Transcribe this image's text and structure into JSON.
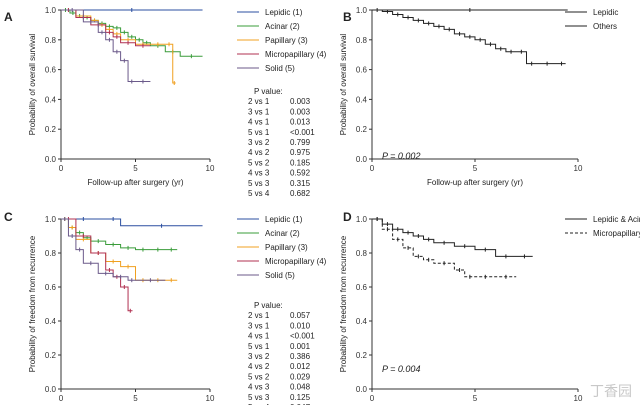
{
  "watermark": "丁香园",
  "chart_data": [
    {
      "panel": "A",
      "type": "line",
      "subtype": "kaplan-meier",
      "xlabel": "Follow-up after surgery (yr)",
      "ylabel": "Probability of overall survival",
      "xlim": [
        0,
        10
      ],
      "ylim": [
        0,
        1.0
      ],
      "xticks": [
        0,
        5,
        10
      ],
      "yticks": [
        0,
        0.2,
        0.4,
        0.6,
        0.8,
        1.0
      ],
      "legend_position": "top-right",
      "pvalue_title": "P value:",
      "pvalues": [
        {
          "comparison": "2 vs 1",
          "value": "0.003"
        },
        {
          "comparison": "3 vs 1",
          "value": "0.003"
        },
        {
          "comparison": "4 vs 1",
          "value": "0.013"
        },
        {
          "comparison": "5 vs 1",
          "value": "<0.001"
        },
        {
          "comparison": "3 vs 2",
          "value": "0.799"
        },
        {
          "comparison": "4 vs 2",
          "value": "0.975"
        },
        {
          "comparison": "5 vs 2",
          "value": "0.185"
        },
        {
          "comparison": "4 vs 3",
          "value": "0.592"
        },
        {
          "comparison": "5 vs 3",
          "value": "0.315"
        },
        {
          "comparison": "5 vs 4",
          "value": "0.682"
        }
      ],
      "series": [
        {
          "name": "Lepidic (1)",
          "color": "#2b4fa0",
          "dash": "",
          "x": [
            0,
            9.5
          ],
          "y": [
            1.0,
            1.0
          ]
        },
        {
          "name": "Acinar (2)",
          "color": "#3a9c3a",
          "dash": "",
          "x": [
            0,
            0.6,
            1.0,
            1.5,
            2.0,
            2.5,
            3.0,
            3.5,
            4.0,
            4.5,
            5.0,
            5.5,
            6.0,
            7.0,
            8.0,
            9.5
          ],
          "y": [
            1.0,
            0.98,
            0.96,
            0.95,
            0.93,
            0.91,
            0.89,
            0.88,
            0.85,
            0.82,
            0.8,
            0.78,
            0.76,
            0.72,
            0.69,
            0.69
          ]
        },
        {
          "name": "Papillary (3)",
          "color": "#f0a020",
          "dash": "",
          "x": [
            0,
            1.0,
            2.0,
            2.5,
            3.0,
            3.5,
            4.0,
            5.0,
            6.0,
            7.0,
            7.5,
            7.7
          ],
          "y": [
            1.0,
            0.96,
            0.93,
            0.9,
            0.87,
            0.84,
            0.8,
            0.77,
            0.77,
            0.77,
            0.51,
            0.51
          ]
        },
        {
          "name": "Micropapillary (4)",
          "color": "#b03050",
          "dash": "",
          "x": [
            0,
            1.0,
            2.0,
            3.0,
            3.5,
            4.0,
            5.0,
            6.0
          ],
          "y": [
            1.0,
            0.95,
            0.9,
            0.85,
            0.82,
            0.78,
            0.76,
            0.76
          ]
        },
        {
          "name": "Solid (5)",
          "color": "#6b5a8a",
          "dash": "",
          "x": [
            0,
            1.5,
            2.5,
            3.0,
            3.5,
            4.0,
            4.5,
            5.0,
            6.0
          ],
          "y": [
            1.0,
            0.92,
            0.85,
            0.8,
            0.72,
            0.66,
            0.52,
            0.52,
            0.52
          ]
        }
      ]
    },
    {
      "panel": "B",
      "type": "line",
      "subtype": "kaplan-meier",
      "xlabel": "Follow-up after surgery (yr)",
      "ylabel": "Probability of overall survival",
      "xlim": [
        0,
        10
      ],
      "ylim": [
        0,
        1.0
      ],
      "xticks": [
        0,
        5,
        10
      ],
      "yticks": [
        0,
        0.2,
        0.4,
        0.6,
        0.8,
        1.0
      ],
      "legend_position": "top-right",
      "annotation": "P = 0.002",
      "series": [
        {
          "name": "Lepidic",
          "color": "#222222",
          "dash": "",
          "x": [
            0,
            9.5
          ],
          "y": [
            1.0,
            1.0
          ]
        },
        {
          "name": "Others",
          "color": "#222222",
          "dash": "",
          "x": [
            0,
            0.5,
            1.0,
            1.5,
            2.0,
            2.5,
            3.0,
            3.5,
            4.0,
            4.5,
            5.0,
            5.5,
            6.0,
            6.5,
            7.0,
            7.5,
            8.0,
            9.0,
            9.4
          ],
          "y": [
            1.0,
            0.99,
            0.97,
            0.95,
            0.93,
            0.91,
            0.89,
            0.87,
            0.84,
            0.82,
            0.8,
            0.77,
            0.74,
            0.72,
            0.72,
            0.64,
            0.64,
            0.64,
            0.64
          ]
        }
      ]
    },
    {
      "panel": "C",
      "type": "line",
      "subtype": "kaplan-meier",
      "xlabel": "Follow-up after surgery (yr)",
      "ylabel": "Probability of freedom from recurrence",
      "xlim": [
        0,
        10
      ],
      "ylim": [
        0,
        1.0
      ],
      "xticks": [
        0,
        5,
        10
      ],
      "yticks": [
        0,
        0.2,
        0.4,
        0.6,
        0.8,
        1.0
      ],
      "legend_position": "top-right",
      "pvalue_title": "P value:",
      "pvalues": [
        {
          "comparison": "2 vs 1",
          "value": "0.057"
        },
        {
          "comparison": "3 vs 1",
          "value": "0.010"
        },
        {
          "comparison": "4 vs 1",
          "value": "<0.001"
        },
        {
          "comparison": "5 vs 1",
          "value": "0.001"
        },
        {
          "comparison": "3 vs 2",
          "value": "0.386"
        },
        {
          "comparison": "4 vs 2",
          "value": "0.012"
        },
        {
          "comparison": "5 vs 2",
          "value": "0.029"
        },
        {
          "comparison": "4 vs 3",
          "value": "0.048"
        },
        {
          "comparison": "5 vs 3",
          "value": "0.125"
        },
        {
          "comparison": "5 vs 4",
          "value": "0.047"
        }
      ],
      "series": [
        {
          "name": "Lepidic (1)",
          "color": "#2b4fa0",
          "dash": "",
          "x": [
            0,
            3.0,
            4.0,
            9.5
          ],
          "y": [
            1.0,
            1.0,
            0.96,
            0.96
          ]
        },
        {
          "name": "Acinar (2)",
          "color": "#3a9c3a",
          "dash": "",
          "x": [
            0,
            0.5,
            1.0,
            1.5,
            2.0,
            3.0,
            4.0,
            5.0,
            6.0,
            7.0,
            7.8
          ],
          "y": [
            1.0,
            0.95,
            0.92,
            0.89,
            0.87,
            0.85,
            0.83,
            0.82,
            0.82,
            0.82,
            0.82
          ]
        },
        {
          "name": "Papillary (3)",
          "color": "#f0a020",
          "dash": "",
          "x": [
            0,
            0.5,
            1.0,
            2.0,
            3.0,
            4.0,
            5.0,
            6.0,
            7.0,
            7.8
          ],
          "y": [
            1.0,
            0.95,
            0.88,
            0.8,
            0.75,
            0.72,
            0.64,
            0.64,
            0.64,
            0.64
          ]
        },
        {
          "name": "Micropapillary (4)",
          "color": "#b03050",
          "dash": "",
          "x": [
            0,
            1.0,
            2.0,
            3.0,
            3.5,
            4.0,
            4.5,
            4.8
          ],
          "y": [
            1.0,
            0.9,
            0.8,
            0.7,
            0.66,
            0.6,
            0.46,
            0.46
          ]
        },
        {
          "name": "Solid (5)",
          "color": "#6b5a8a",
          "dash": "",
          "x": [
            0,
            0.5,
            1.0,
            1.5,
            2.5,
            3.5,
            4.5,
            5.0,
            7.0
          ],
          "y": [
            1.0,
            0.9,
            0.82,
            0.74,
            0.68,
            0.66,
            0.64,
            0.64,
            0.64
          ]
        }
      ]
    },
    {
      "panel": "D",
      "type": "line",
      "subtype": "kaplan-meier",
      "xlabel": "Follow-up after surgery (yr)",
      "ylabel": "Probability of freedom from recurrence",
      "xlim": [
        0,
        10
      ],
      "ylim": [
        0,
        1.0
      ],
      "xticks": [
        0,
        5,
        10
      ],
      "yticks": [
        0,
        0.2,
        0.4,
        0.6,
        0.8,
        1.0
      ],
      "legend_position": "top-right",
      "annotation": "P = 0.004",
      "series": [
        {
          "name": "Lepidic & Acinar & Papillary",
          "color": "#222222",
          "dash": "",
          "x": [
            0,
            0.5,
            1.0,
            1.5,
            2.0,
            2.5,
            3.0,
            4.0,
            5.0,
            6.0,
            7.0,
            7.8
          ],
          "y": [
            1.0,
            0.97,
            0.94,
            0.92,
            0.9,
            0.88,
            0.86,
            0.84,
            0.82,
            0.78,
            0.78,
            0.78
          ]
        },
        {
          "name": "Micropapillary & Solid",
          "color": "#222222",
          "dash": "3,2",
          "x": [
            0,
            0.5,
            1.0,
            1.5,
            2.0,
            2.5,
            3.0,
            4.0,
            4.5,
            5.0,
            6.0,
            7.0
          ],
          "y": [
            1.0,
            0.94,
            0.88,
            0.83,
            0.78,
            0.76,
            0.74,
            0.7,
            0.66,
            0.66,
            0.66,
            0.66
          ]
        }
      ]
    }
  ]
}
